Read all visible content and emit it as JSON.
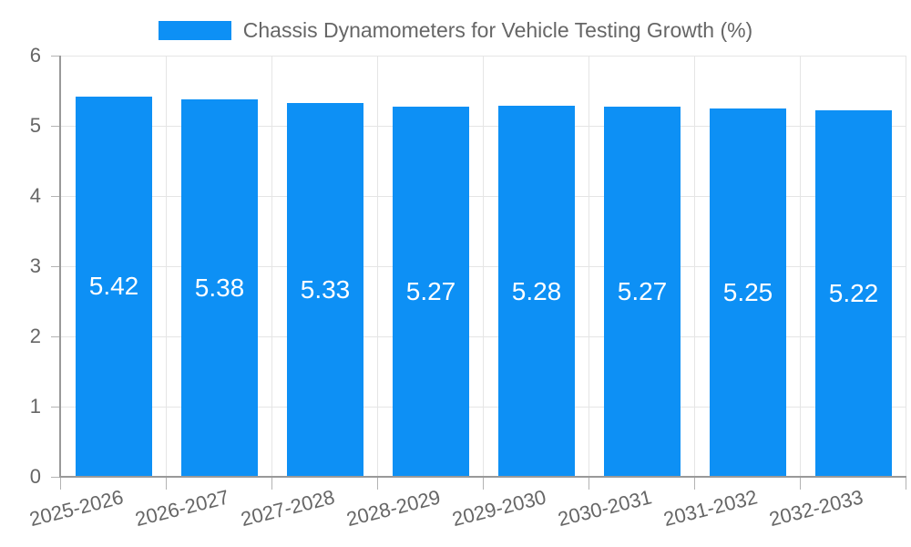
{
  "chart": {
    "colors": {
      "bar": "#0d90f5",
      "bar_label": "#ffffff",
      "axis": "#999999",
      "grid": "#e5e5e5",
      "tick": "#b3b3b3",
      "text": "#666666",
      "background": "#ffffff"
    }
  },
  "chart_data": {
    "type": "bar",
    "title": "Chassis Dynamometers for Vehicle Testing Growth (%)",
    "categories": [
      "2025-2026",
      "2026-2027",
      "2027-2028",
      "2028-2029",
      "2029-2030",
      "2030-2031",
      "2031-2032",
      "2032-2033"
    ],
    "values": [
      5.42,
      5.38,
      5.33,
      5.27,
      5.28,
      5.27,
      5.25,
      5.22
    ],
    "value_labels": [
      "5.42",
      "5.38",
      "5.33",
      "5.27",
      "5.28",
      "5.27",
      "5.25",
      "5.22"
    ],
    "xlabel": "",
    "ylabel": "",
    "ylim": [
      0,
      6
    ],
    "yticks": [
      0,
      1,
      2,
      3,
      4,
      5,
      6
    ],
    "grid": true,
    "legend_position": "top",
    "bar_labels_position": "center-inside",
    "xlabel_rotation_deg": -14
  }
}
